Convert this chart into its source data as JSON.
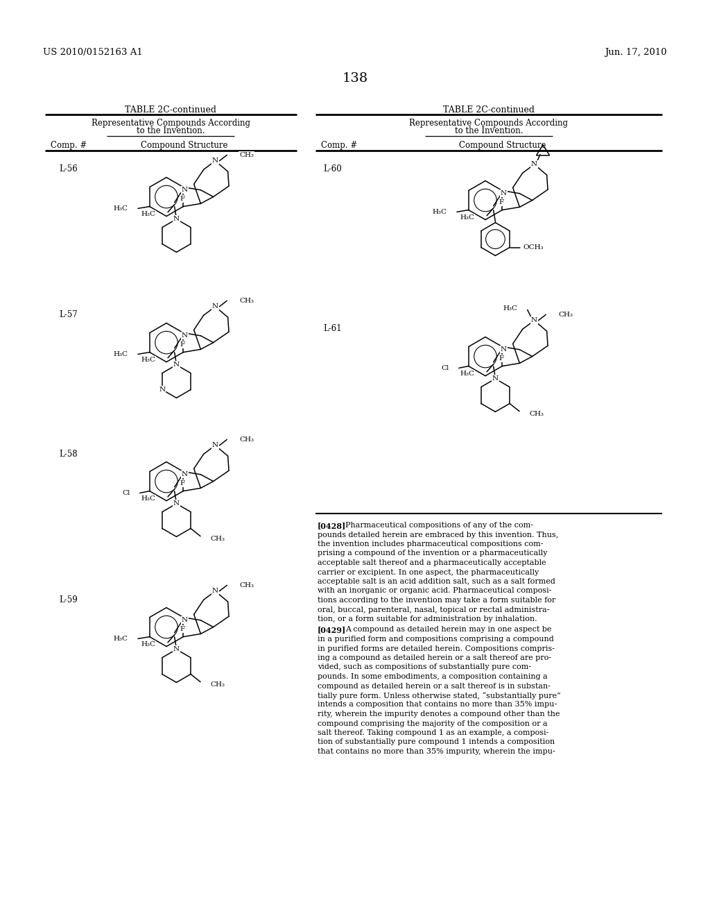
{
  "page_number": "138",
  "patent_number": "US 2010/0152163 A1",
  "patent_date": "Jun. 17, 2010",
  "bg": "#ffffff",
  "fg": "#000000",
  "para_0428_lines": [
    "[0428]   Pharmaceutical compositions of any of the com-",
    "pounds detailed herein are embraced by this invention. Thus,",
    "the invention includes pharmaceutical compositions com-",
    "prising a compound of the invention or a pharmaceutically",
    "acceptable salt thereof and a pharmaceutically acceptable",
    "carrier or excipient. In one aspect, the pharmaceutically",
    "acceptable salt is an acid addition salt, such as a salt formed",
    "with an inorganic or organic acid. Pharmaceutical composi-",
    "tions according to the invention may take a form suitable for",
    "oral, buccal, parenteral, nasal, topical or rectal administra-",
    "tion, or a form suitable for administration by inhalation."
  ],
  "para_0429_lines": [
    "[0429]   A compound as detailed herein may in one aspect be",
    "in a purified form and compositions comprising a compound",
    "in purified forms are detailed herein. Compositions compris-",
    "ing a compound as detailed herein or a salt thereof are pro-",
    "vided, such as compositions of substantially pure com-",
    "pounds. In some embodiments, a composition containing a",
    "compound as detailed herein or a salt thereof is in substan-",
    "tially pure form. Unless otherwise stated, “substantially pure”",
    "intends a composition that contains no more than 35% impu-",
    "rity, wherein the impurity denotes a compound other than the",
    "compound comprising the majority of the composition or a",
    "salt thereof. Taking compound 1 as an example, a composi-",
    "tion of substantially pure compound 1 intends a composition",
    "that contains no more than 35% impurity, wherein the impu-"
  ]
}
